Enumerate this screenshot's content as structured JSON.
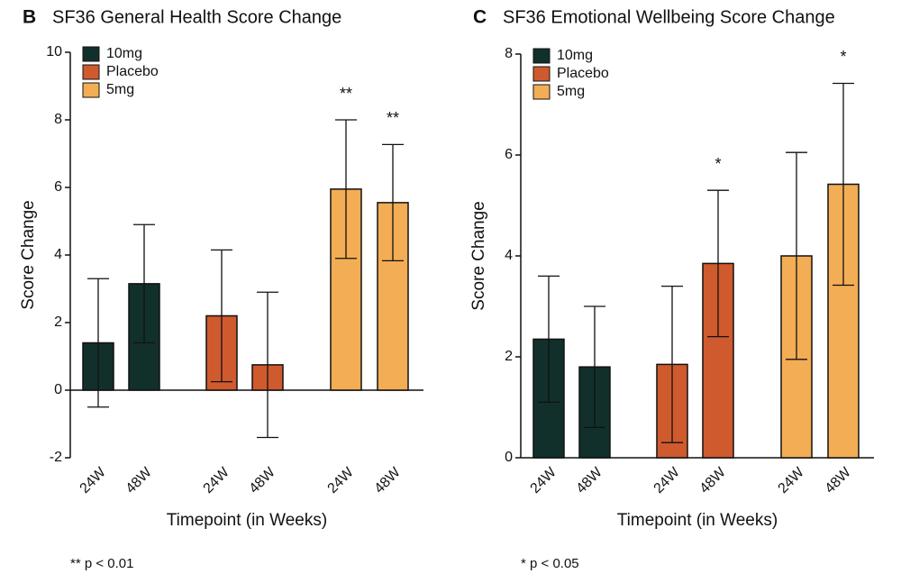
{
  "chart_data": [
    {
      "type": "bar",
      "panel": "B",
      "title": "SF36 General Health Score Change",
      "ylabel": "Score Change",
      "xlabel": "Timepoint (in Weeks)",
      "footnote": "** p < 0.01",
      "categories": [
        "24W",
        "48W",
        "24W",
        "48W",
        "24W",
        "48W"
      ],
      "series": [
        {
          "name": "10mg",
          "color": "#12302b",
          "values": [
            1.4,
            3.15,
            null,
            null,
            null,
            null
          ],
          "errors": [
            1.9,
            1.75,
            null,
            null,
            null,
            null
          ]
        },
        {
          "name": "Placebo",
          "color": "#cf5a2e",
          "values": [
            null,
            null,
            2.2,
            0.75,
            null,
            null
          ],
          "errors": [
            null,
            null,
            1.95,
            2.15,
            null,
            null
          ]
        },
        {
          "name": "5mg",
          "color": "#f2ad55",
          "values": [
            null,
            null,
            null,
            null,
            5.95,
            5.55
          ],
          "errors": [
            null,
            null,
            null,
            null,
            2.05,
            1.72
          ],
          "annotations": [
            null,
            null,
            null,
            null,
            "**",
            "**"
          ]
        }
      ],
      "ylim": [
        -2,
        10
      ],
      "yticks": [
        -2,
        0,
        2,
        4,
        6,
        8,
        10
      ],
      "legend": "upper left"
    },
    {
      "type": "bar",
      "panel": "C",
      "title": "SF36 Emotional Wellbeing Score Change",
      "ylabel": "Score Change",
      "xlabel": "Timepoint (in Weeks)",
      "footnote": "* p < 0.05",
      "categories": [
        "24W",
        "48W",
        "24W",
        "48W",
        "24W",
        "48W"
      ],
      "series": [
        {
          "name": "10mg",
          "color": "#12302b",
          "values": [
            2.35,
            1.8,
            null,
            null,
            null,
            null
          ],
          "errors": [
            1.25,
            1.2,
            null,
            null,
            null,
            null
          ]
        },
        {
          "name": "Placebo",
          "color": "#cf5a2e",
          "values": [
            null,
            null,
            1.85,
            3.85,
            null,
            null
          ],
          "errors": [
            null,
            null,
            1.55,
            1.45,
            null,
            null
          ],
          "annotations": [
            null,
            null,
            null,
            "*",
            null,
            null
          ]
        },
        {
          "name": "5mg",
          "color": "#f2ad55",
          "values": [
            null,
            null,
            null,
            null,
            4.0,
            5.42
          ],
          "errors": [
            null,
            null,
            null,
            null,
            2.05,
            2.0
          ],
          "annotations": [
            null,
            null,
            null,
            null,
            null,
            "*"
          ]
        }
      ],
      "ylim": [
        0,
        8
      ],
      "yticks": [
        0,
        2,
        4,
        6,
        8
      ],
      "legend": "upper left"
    }
  ]
}
